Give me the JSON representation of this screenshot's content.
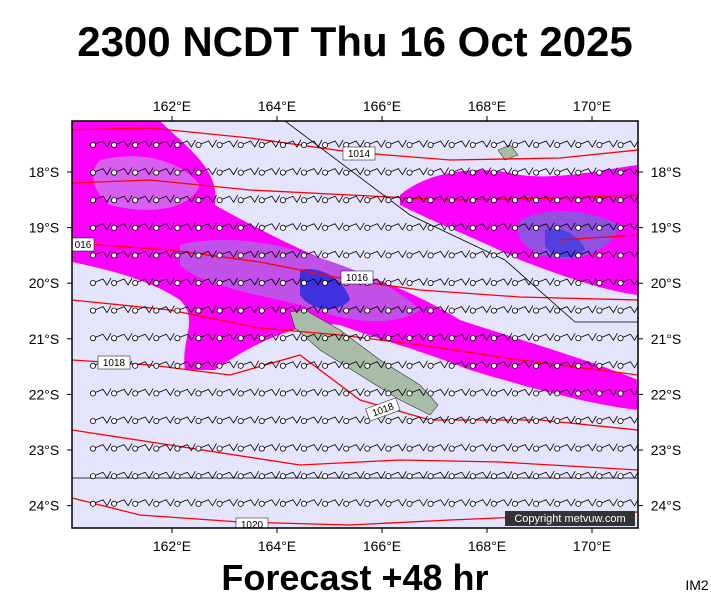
{
  "title": "2300 NCDT Thu 16 Oct 2025",
  "map": {
    "lon_labels": [
      "162°E",
      "164°E",
      "166°E",
      "168°E",
      "170°E"
    ],
    "lat_labels": [
      "18°S",
      "19°S",
      "20°S",
      "21°S",
      "22°S",
      "23°S",
      "24°S"
    ],
    "isobar_labels": [
      "1014",
      "016",
      "1016",
      "1018",
      "1018",
      "1020"
    ],
    "copyright": "Copyright metvuw.com"
  },
  "footer": {
    "forecast": "Forecast +48 hr",
    "code": "IM2"
  }
}
